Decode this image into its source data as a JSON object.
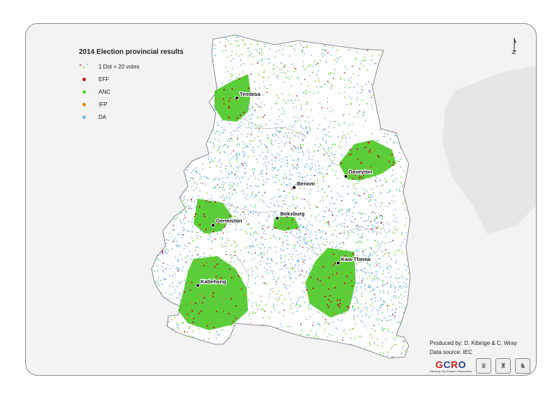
{
  "legend": {
    "title": "2014 Election provincial results",
    "scale_label": "1 Dot = 20 votes",
    "items": [
      {
        "label": "EFF",
        "color": "#c0141a"
      },
      {
        "label": "ANC",
        "color": "#55e01c"
      },
      {
        "label": "IFP",
        "color": "#e38a0a"
      },
      {
        "label": "DA",
        "color": "#6fb0ec"
      }
    ]
  },
  "towns": [
    {
      "name": "Tembisa"
    },
    {
      "name": "Benoni"
    },
    {
      "name": "Daveyton"
    },
    {
      "name": "Boksburg"
    },
    {
      "name": "Germiston"
    },
    {
      "name": "Kwa-Thema"
    },
    {
      "name": "Katlehong"
    }
  ],
  "credits": {
    "produced_by": "Produced by: D. Kibirige & C. Wray",
    "data_source": "Data source: IEC"
  },
  "logos": {
    "gcro_text": "GCRO",
    "gcro_subtitle": "Gauteng City-Region Observatory"
  },
  "north_arrow": {
    "letter": "N"
  }
}
